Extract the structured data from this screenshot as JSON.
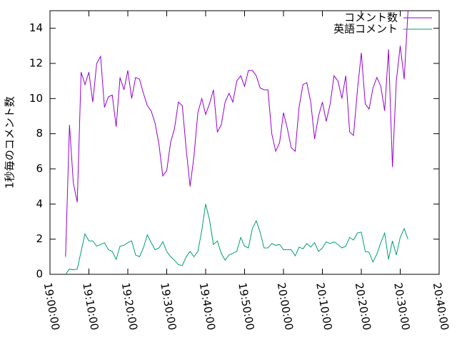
{
  "chart_data": {
    "type": "line",
    "ylabel": "1秒毎のコメント数",
    "xlim": [
      "19:00:00",
      "20:40:00"
    ],
    "xticks": [
      "19:00:00",
      "19:10:00",
      "19:20:00",
      "19:30:00",
      "19:40:00",
      "19:50:00",
      "20:00:00",
      "20:10:00",
      "20:20:00",
      "20:30:00",
      "20:40:00"
    ],
    "ylim": [
      0,
      15
    ],
    "yticks": [
      0,
      2,
      4,
      6,
      8,
      10,
      12,
      14
    ],
    "legend": "top-right",
    "x": [
      "19:04:00",
      "19:05:00",
      "19:06:00",
      "19:07:00",
      "19:08:00",
      "19:09:00",
      "19:10:00",
      "19:11:00",
      "19:12:00",
      "19:13:00",
      "19:14:00",
      "19:15:00",
      "19:16:00",
      "19:17:00",
      "19:18:00",
      "19:19:00",
      "19:20:00",
      "19:21:00",
      "19:22:00",
      "19:23:00",
      "19:24:00",
      "19:25:00",
      "19:26:00",
      "19:27:00",
      "19:28:00",
      "19:29:00",
      "19:30:00",
      "19:31:00",
      "19:32:00",
      "19:33:00",
      "19:34:00",
      "19:35:00",
      "19:36:00",
      "19:37:00",
      "19:38:00",
      "19:39:00",
      "19:40:00",
      "19:41:00",
      "19:42:00",
      "19:43:00",
      "19:44:00",
      "19:45:00",
      "19:46:00",
      "19:47:00",
      "19:48:00",
      "19:49:00",
      "19:50:00",
      "19:51:00",
      "19:52:00",
      "19:53:00",
      "19:54:00",
      "19:55:00",
      "19:56:00",
      "19:57:00",
      "19:58:00",
      "19:59:00",
      "20:00:00",
      "20:01:00",
      "20:02:00",
      "20:03:00",
      "20:04:00",
      "20:05:00",
      "20:06:00",
      "20:07:00",
      "20:08:00",
      "20:09:00",
      "20:10:00",
      "20:11:00",
      "20:12:00",
      "20:13:00",
      "20:14:00",
      "20:15:00",
      "20:16:00",
      "20:17:00",
      "20:18:00",
      "20:19:00",
      "20:20:00",
      "20:21:00",
      "20:22:00",
      "20:23:00",
      "20:24:00",
      "20:25:00",
      "20:26:00",
      "20:27:00",
      "20:28:00",
      "20:29:00",
      "20:30:00",
      "20:31:00",
      "20:32:00"
    ],
    "series": [
      {
        "name": "コメント数",
        "color": "#9400d3",
        "values": [
          1.0,
          8.5,
          5.2,
          4.1,
          11.5,
          10.8,
          11.5,
          9.8,
          12.0,
          12.4,
          9.5,
          10.1,
          10.2,
          8.4,
          11.2,
          10.5,
          11.6,
          10.0,
          11.2,
          11.1,
          10.3,
          9.6,
          9.3,
          8.6,
          7.4,
          5.6,
          5.9,
          7.5,
          8.3,
          9.8,
          9.6,
          7.1,
          5.0,
          6.7,
          9.2,
          10.0,
          9.1,
          9.7,
          10.5,
          8.1,
          8.5,
          9.8,
          10.3,
          9.8,
          11.0,
          11.3,
          10.7,
          11.6,
          11.6,
          11.3,
          10.6,
          10.5,
          10.5,
          8.0,
          7.0,
          7.5,
          9.2,
          8.3,
          7.2,
          7.0,
          9.5,
          10.8,
          10.9,
          9.8,
          7.7,
          9.0,
          9.8,
          8.7,
          9.7,
          11.3,
          11.0,
          10.0,
          11.3,
          8.1,
          7.9,
          10.5,
          12.6,
          9.7,
          9.4,
          10.6,
          11.2,
          10.7,
          9.3,
          12.8,
          6.1,
          11.0,
          13.0,
          11.1,
          15.0
        ]
      },
      {
        "name": "英語コメント",
        "color": "#009e73",
        "values": [
          0,
          0.3,
          0.25,
          0.3,
          1.3,
          2.3,
          1.9,
          1.9,
          1.6,
          1.7,
          1.8,
          1.4,
          1.3,
          0.85,
          1.6,
          1.65,
          1.8,
          1.9,
          1.1,
          1.0,
          1.5,
          2.25,
          1.8,
          1.4,
          1.5,
          1.85,
          1.3,
          1.0,
          0.8,
          0.55,
          0.5,
          1.0,
          1.3,
          1.0,
          1.3,
          2.5,
          4.0,
          3.1,
          1.7,
          1.9,
          1.2,
          0.8,
          1.1,
          1.2,
          1.3,
          2.1,
          1.6,
          1.5,
          2.6,
          3.05,
          2.4,
          1.5,
          1.5,
          1.75,
          1.65,
          1.7,
          1.4,
          1.4,
          1.4,
          1.05,
          1.55,
          1.45,
          1.75,
          1.55,
          1.8,
          1.3,
          1.5,
          1.85,
          1.75,
          1.85,
          1.7,
          1.5,
          1.6,
          2.1,
          1.95,
          2.35,
          2.4,
          1.3,
          1.25,
          0.7,
          1.15,
          1.8,
          2.35,
          0.85,
          1.9,
          1.1,
          2.1,
          2.6,
          2.0
        ]
      }
    ]
  }
}
